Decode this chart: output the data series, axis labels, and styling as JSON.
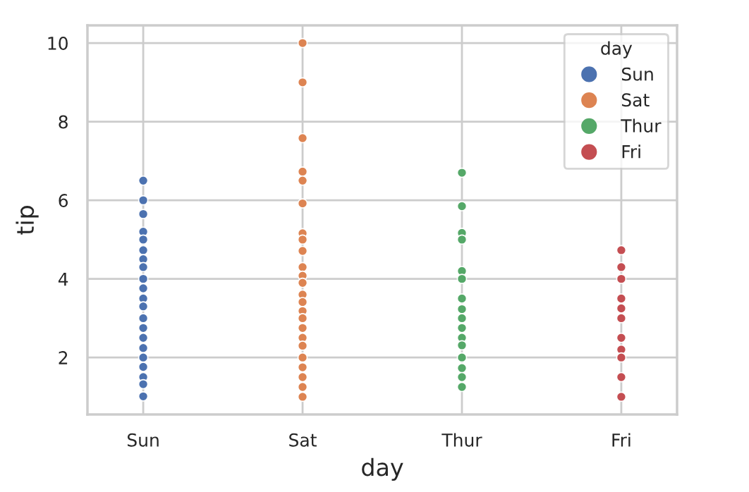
{
  "chart_data": {
    "type": "scatter",
    "xlabel": "day",
    "ylabel": "tip",
    "legend_title": "day",
    "categories": [
      "Sun",
      "Sat",
      "Thur",
      "Fri"
    ],
    "ylim": [
      0.55,
      10.45
    ],
    "yticks": [
      2,
      4,
      6,
      8,
      10
    ],
    "grid": true,
    "legend": "top right",
    "marker": "circle",
    "series": [
      {
        "name": "Sun",
        "color": "#4c72b0",
        "x": [
          "Sun",
          "Sun",
          "Sun",
          "Sun",
          "Sun",
          "Sun",
          "Sun",
          "Sun",
          "Sun",
          "Sun",
          "Sun",
          "Sun",
          "Sun",
          "Sun",
          "Sun",
          "Sun",
          "Sun",
          "Sun",
          "Sun",
          "Sun",
          "Sun"
        ],
        "values": [
          6.5,
          6.0,
          5.65,
          5.2,
          5.0,
          4.73,
          4.5,
          4.3,
          4.0,
          3.76,
          3.5,
          3.3,
          3.0,
          2.75,
          2.5,
          2.24,
          2.0,
          1.76,
          1.5,
          1.32,
          1.01
        ]
      },
      {
        "name": "Sat",
        "color": "#dd8452",
        "x": [
          "Sat",
          "Sat",
          "Sat",
          "Sat",
          "Sat",
          "Sat",
          "Sat",
          "Sat",
          "Sat",
          "Sat",
          "Sat",
          "Sat",
          "Sat",
          "Sat",
          "Sat",
          "Sat",
          "Sat",
          "Sat",
          "Sat",
          "Sat",
          "Sat",
          "Sat",
          "Sat",
          "Sat"
        ],
        "values": [
          10.0,
          9.0,
          7.58,
          6.73,
          6.5,
          5.92,
          5.16,
          5.0,
          4.71,
          4.3,
          4.08,
          3.9,
          3.6,
          3.41,
          3.18,
          3.0,
          2.75,
          2.5,
          2.3,
          2.0,
          1.75,
          1.5,
          1.25,
          1.0
        ]
      },
      {
        "name": "Thur",
        "color": "#55a868",
        "x": [
          "Thur",
          "Thur",
          "Thur",
          "Thur",
          "Thur",
          "Thur",
          "Thur",
          "Thur",
          "Thur",
          "Thur",
          "Thur",
          "Thur",
          "Thur",
          "Thur",
          "Thur",
          "Thur"
        ],
        "values": [
          6.7,
          5.85,
          5.17,
          5.0,
          4.2,
          4.0,
          3.5,
          3.23,
          3.0,
          2.75,
          2.5,
          2.31,
          2.0,
          1.73,
          1.5,
          1.25
        ]
      },
      {
        "name": "Fri",
        "color": "#c44e52",
        "x": [
          "Fri",
          "Fri",
          "Fri",
          "Fri",
          "Fri",
          "Fri",
          "Fri",
          "Fri",
          "Fri",
          "Fri",
          "Fri"
        ],
        "values": [
          4.73,
          4.3,
          4.0,
          3.5,
          3.25,
          3.0,
          2.5,
          2.2,
          2.0,
          1.5,
          1.0
        ]
      }
    ]
  }
}
